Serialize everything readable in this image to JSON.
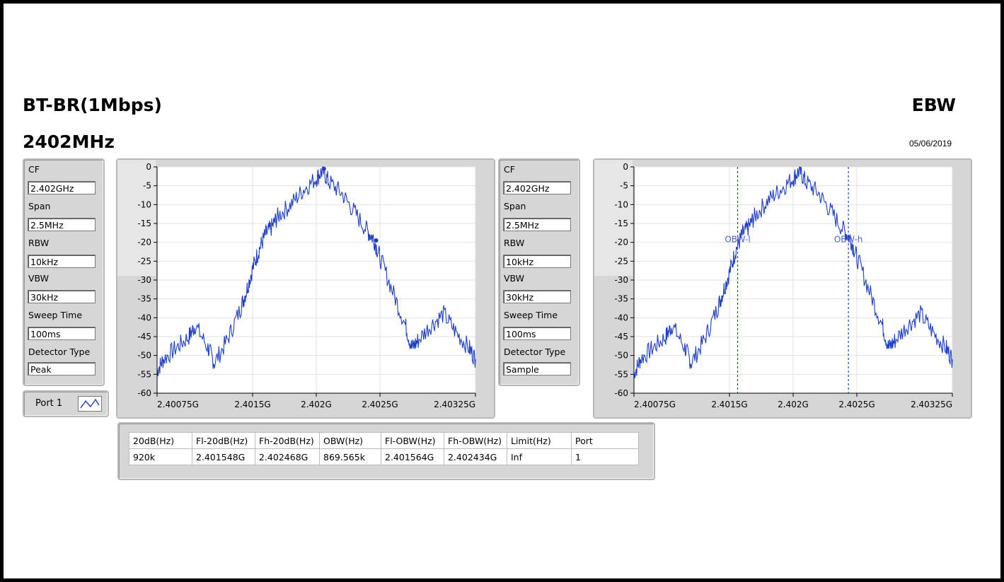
{
  "header": {
    "title": "BT-BR(1Mbps)",
    "frequency": "2402MHz",
    "mode": "EBW",
    "date": "05/06/2019"
  },
  "settings_left": [
    {
      "label": "CF",
      "value": "2.402GHz"
    },
    {
      "label": "Span",
      "value": "2.5MHz"
    },
    {
      "label": "RBW",
      "value": "10kHz"
    },
    {
      "label": "VBW",
      "value": "30kHz"
    },
    {
      "label": "Sweep Time",
      "value": "100ms"
    },
    {
      "label": "Detector Type",
      "value": "Peak"
    }
  ],
  "settings_right": [
    {
      "label": "CF",
      "value": "2.402GHz"
    },
    {
      "label": "Span",
      "value": "2.5MHz"
    },
    {
      "label": "RBW",
      "value": "10kHz"
    },
    {
      "label": "VBW",
      "value": "30kHz"
    },
    {
      "label": "Sweep Time",
      "value": "100ms"
    },
    {
      "label": "Detector Type",
      "value": "Sample"
    }
  ],
  "port": {
    "label": "Port 1",
    "icon": "waveform-icon"
  },
  "results_table": {
    "headers": [
      "20dB(Hz)",
      "Fl-20dB(Hz)",
      "Fh-20dB(Hz)",
      "OBW(Hz)",
      "Fl-OBW(Hz)",
      "Fh-OBW(Hz)",
      "Limit(Hz)",
      "Port"
    ],
    "rows": [
      [
        "920k",
        "2.401548G",
        "2.402468G",
        "869.565k",
        "2.401564G",
        "2.402434G",
        "Inf",
        "1"
      ]
    ]
  },
  "chart_data": [
    {
      "type": "line",
      "title": "",
      "xlabel": "",
      "ylabel": "",
      "xlim": [
        2.40075,
        2.40325
      ],
      "ylim": [
        -60,
        0
      ],
      "x_ticks": [
        "2.40075G",
        "2.4015G",
        "2.402G",
        "2.4025G",
        "2.40325G"
      ],
      "x_tick_values": [
        2.40075,
        2.4015,
        2.402,
        2.4025,
        2.40325
      ],
      "y_ticks": [
        "0",
        "-5",
        "-10",
        "-15",
        "-20",
        "-25",
        "-30",
        "-35",
        "-40",
        "-45",
        "-50",
        "-55",
        "-60"
      ],
      "y_tick_values": [
        0,
        -5,
        -10,
        -15,
        -20,
        -25,
        -30,
        -35,
        -40,
        -45,
        -50,
        -55,
        -60
      ],
      "grid": true,
      "series": [
        {
          "color": "#1c3fc8",
          "x": [
            2.40075,
            2.4008,
            2.4009,
            2.401,
            2.40105,
            2.40115,
            2.4012,
            2.4013,
            2.4014,
            2.40145,
            2.4015,
            2.40155,
            2.4016,
            2.40165,
            2.4017,
            2.4018,
            2.4019,
            2.402,
            2.40205,
            2.4021,
            2.4022,
            2.4023,
            2.4024,
            2.40245,
            2.4025,
            2.4026,
            2.4027,
            2.40275,
            2.4028,
            2.4029,
            2.403,
            2.4031,
            2.4032,
            2.40325
          ],
          "y": [
            -54,
            -51,
            -48,
            -45,
            -42,
            -48,
            -52,
            -46,
            -38,
            -33,
            -27,
            -22,
            -18,
            -16,
            -13,
            -10,
            -6,
            -3,
            -1,
            -4,
            -7,
            -12,
            -17,
            -19,
            -24,
            -33,
            -42,
            -48,
            -46,
            -42,
            -39,
            -44,
            -48,
            -51
          ]
        }
      ],
      "markers": [
        {
          "x": 2.40206,
          "y": -0.5
        },
        {
          "x": 2.40247,
          "y": -19.5
        }
      ]
    },
    {
      "type": "line",
      "title": "",
      "xlabel": "",
      "ylabel": "",
      "xlim": [
        2.40075,
        2.40325
      ],
      "ylim": [
        -60,
        0
      ],
      "x_ticks": [
        "2.40075G",
        "2.4015G",
        "2.402G",
        "2.4025G",
        "2.40325G"
      ],
      "x_tick_values": [
        2.40075,
        2.4015,
        2.402,
        2.4025,
        2.40325
      ],
      "y_ticks": [
        "0",
        "-5",
        "-10",
        "-15",
        "-20",
        "-25",
        "-30",
        "-35",
        "-40",
        "-45",
        "-50",
        "-55",
        "-60"
      ],
      "y_tick_values": [
        0,
        -5,
        -10,
        -15,
        -20,
        -25,
        -30,
        -35,
        -40,
        -45,
        -50,
        -55,
        -60
      ],
      "grid": true,
      "series": [
        {
          "color": "#1c3fc8",
          "x": [
            2.40075,
            2.4008,
            2.4009,
            2.401,
            2.40105,
            2.40115,
            2.4012,
            2.4013,
            2.4014,
            2.40145,
            2.4015,
            2.40155,
            2.4016,
            2.40165,
            2.4017,
            2.4018,
            2.4019,
            2.402,
            2.40205,
            2.4021,
            2.4022,
            2.4023,
            2.4024,
            2.40245,
            2.4025,
            2.4026,
            2.4027,
            2.40275,
            2.4028,
            2.4029,
            2.403,
            2.4031,
            2.4032,
            2.40325
          ],
          "y": [
            -55,
            -51,
            -48,
            -45,
            -42,
            -48,
            -52,
            -46,
            -38,
            -33,
            -28,
            -22,
            -18,
            -16,
            -13,
            -9,
            -6,
            -3,
            -1,
            -4,
            -7,
            -12,
            -17,
            -19,
            -24,
            -33,
            -42,
            -48,
            -46,
            -42,
            -39,
            -44,
            -48,
            -51
          ]
        }
      ],
      "vlines": [
        {
          "x": 2.401564,
          "label": "OBW-l"
        },
        {
          "x": 2.402434,
          "label": "OBW-h"
        }
      ]
    }
  ]
}
